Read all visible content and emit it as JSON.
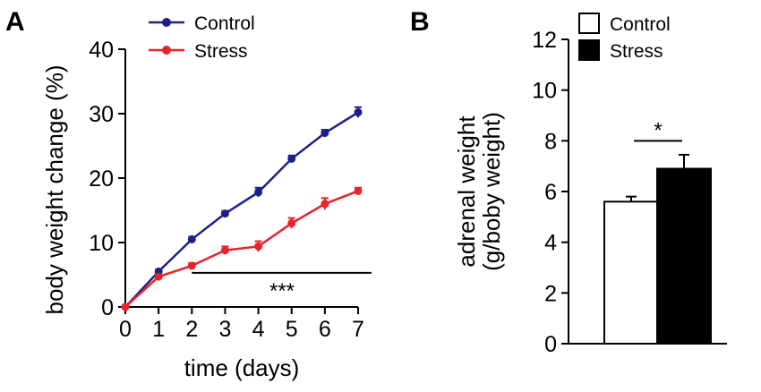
{
  "chart_data": [
    {
      "panel": "A",
      "type": "line",
      "xlabel": "time (days)",
      "ylabel": "body weight change (%)",
      "x": [
        0,
        1,
        2,
        3,
        4,
        5,
        6,
        7
      ],
      "xticks": [
        "0",
        "1",
        "2",
        "3",
        "4",
        "5",
        "6",
        "7"
      ],
      "xlim": [
        0,
        7
      ],
      "ylim": [
        0,
        40
      ],
      "yticks": [
        "0",
        "10",
        "20",
        "30",
        "40"
      ],
      "series": [
        {
          "name": "Control",
          "color": "#1f1f8c",
          "values": [
            0,
            5.5,
            10.5,
            14.5,
            17.8,
            23,
            27,
            30.2
          ],
          "errors": [
            0,
            0.3,
            0.4,
            0.4,
            0.7,
            0.5,
            0.5,
            0.8
          ]
        },
        {
          "name": "Stress",
          "color": "#e8232a",
          "values": [
            0,
            4.7,
            6.4,
            8.8,
            9.4,
            13,
            16,
            18
          ],
          "errors": [
            0,
            0.3,
            0.4,
            0.6,
            0.8,
            0.8,
            0.9,
            0.5
          ]
        }
      ],
      "annotation": {
        "text": "***",
        "from_x": 2,
        "to_x": 7.4,
        "y": 5.3
      }
    },
    {
      "panel": "B",
      "type": "bar",
      "ylabel_lines": [
        "adrenal weight",
        "(g/boby weight)"
      ],
      "categories": [
        "Control",
        "Stress"
      ],
      "values": [
        5.6,
        6.9
      ],
      "errors": [
        0.2,
        0.55
      ],
      "colors": [
        "#ffffff",
        "#000000"
      ],
      "ylim": [
        0,
        12
      ],
      "yticks": [
        "0",
        "2",
        "4",
        "6",
        "8",
        "10",
        "12"
      ],
      "annotation": {
        "text": "*",
        "y": 8.0
      }
    }
  ]
}
